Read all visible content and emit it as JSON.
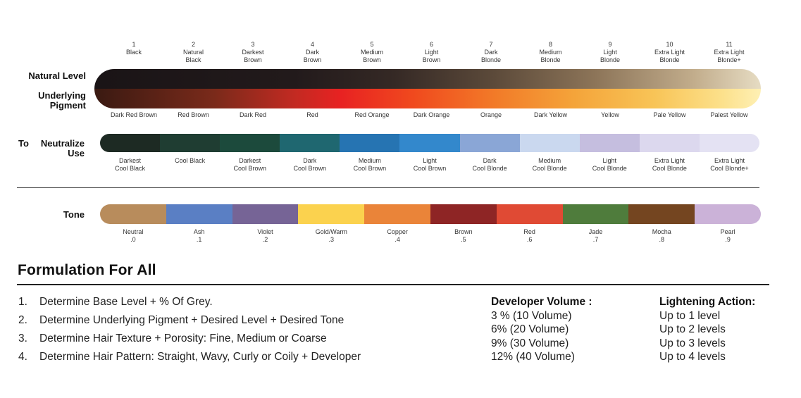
{
  "levels": [
    {
      "num": "1",
      "lines": [
        "Black"
      ]
    },
    {
      "num": "2",
      "lines": [
        "Natural",
        "Black"
      ]
    },
    {
      "num": "3",
      "lines": [
        "Darkest",
        "Brown"
      ]
    },
    {
      "num": "4",
      "lines": [
        "Dark",
        "Brown"
      ]
    },
    {
      "num": "5",
      "lines": [
        "Medium",
        "Brown"
      ]
    },
    {
      "num": "6",
      "lines": [
        "Light",
        "Brown"
      ]
    },
    {
      "num": "7",
      "lines": [
        "Dark",
        "Blonde"
      ]
    },
    {
      "num": "8",
      "lines": [
        "Medium",
        "Blonde"
      ]
    },
    {
      "num": "9",
      "lines": [
        "Light",
        "Blonde"
      ]
    },
    {
      "num": "10",
      "lines": [
        "Extra Light",
        "Blonde"
      ]
    },
    {
      "num": "11",
      "lines": [
        "Extra Light",
        "Blonde+"
      ]
    }
  ],
  "row_labels": {
    "natural_level": "Natural Level",
    "underlying_pigment_1": "Underlying",
    "underlying_pigment_2": "Pigment",
    "neutralize_prefix": "To",
    "neutralize_1": "Neutralize",
    "neutralize_2": "Use",
    "tone": "Tone"
  },
  "pigments": [
    "Dark Red Brown",
    "Red Brown",
    "Dark Red",
    "Red",
    "Red Orange",
    "Dark Orange",
    "Orange",
    "Dark Yellow",
    "Yellow",
    "Pale Yellow",
    "Palest Yellow"
  ],
  "neutralizers": [
    {
      "lines": [
        "Darkest",
        "Cool Black"
      ],
      "color": "#1d2a23"
    },
    {
      "lines": [
        "Cool Black"
      ],
      "color": "#1f3d32"
    },
    {
      "lines": [
        "Darkest",
        "Cool Brown"
      ],
      "color": "#1c4a3c"
    },
    {
      "lines": [
        "Dark",
        "Cool Brown"
      ],
      "color": "#1f6770"
    },
    {
      "lines": [
        "Medium",
        "Cool Brown"
      ],
      "color": "#2674b2"
    },
    {
      "lines": [
        "Light",
        "Cool Brown"
      ],
      "color": "#3388cc"
    },
    {
      "lines": [
        "Dark",
        "Cool Blonde"
      ],
      "color": "#8aa6d6"
    },
    {
      "lines": [
        "Medium",
        "Cool Blonde"
      ],
      "color": "#cad8ef"
    },
    {
      "lines": [
        "Light",
        "Cool Blonde"
      ],
      "color": "#c5bedf"
    },
    {
      "lines": [
        "Extra Light",
        "Cool Blonde"
      ],
      "color": "#dcd8ee"
    },
    {
      "lines": [
        "Extra Light",
        "Cool Blonde+"
      ],
      "color": "#e4e2f3"
    }
  ],
  "tones": [
    {
      "name": "Neutral",
      "code": ".0",
      "color": "#b88c5c"
    },
    {
      "name": "Ash",
      "code": ".1",
      "color": "#5a7fc4"
    },
    {
      "name": "Violet",
      "code": ".2",
      "color": "#766496"
    },
    {
      "name": "Gold/Warm",
      "code": ".3",
      "color": "#fbd24e"
    },
    {
      "name": "Copper",
      "code": ".4",
      "color": "#ea8439"
    },
    {
      "name": "Brown",
      "code": ".5",
      "color": "#8e2525"
    },
    {
      "name": "Red",
      "code": ".6",
      "color": "#e04a34"
    },
    {
      "name": "Jade",
      "code": ".7",
      "color": "#4f7c3c"
    },
    {
      "name": "Mocha",
      "code": ".8",
      "color": "#744520"
    },
    {
      "name": "Pearl",
      "code": ".9",
      "color": "#cbb2d8"
    }
  ],
  "formulation": {
    "title": "Formulation For All",
    "steps": [
      {
        "num": "1.",
        "text": "Determine Base Level + % Of Grey."
      },
      {
        "num": "2.",
        "text": "Determine Underlying Pigment + Desired Level + Desired Tone"
      },
      {
        "num": "3.",
        "text": "Determine Hair Texture + Porosity: Fine, Medium or Coarse"
      },
      {
        "num": "4.",
        "text": "Determine Hair Pattern: Straight, Wavy, Curly or Coily + Developer"
      }
    ],
    "developer_heading": "Developer Volume :",
    "developer": [
      "3 % (10 Volume)",
      "6% (20 Volume)",
      "9% (30 Volume)",
      "12% (40 Volume)"
    ],
    "lightening_heading": "Lightening Action:",
    "lightening": [
      "Up to 1 level",
      "Up to 2 levels",
      "Up to 3 levels",
      "Up to 4 levels"
    ]
  }
}
